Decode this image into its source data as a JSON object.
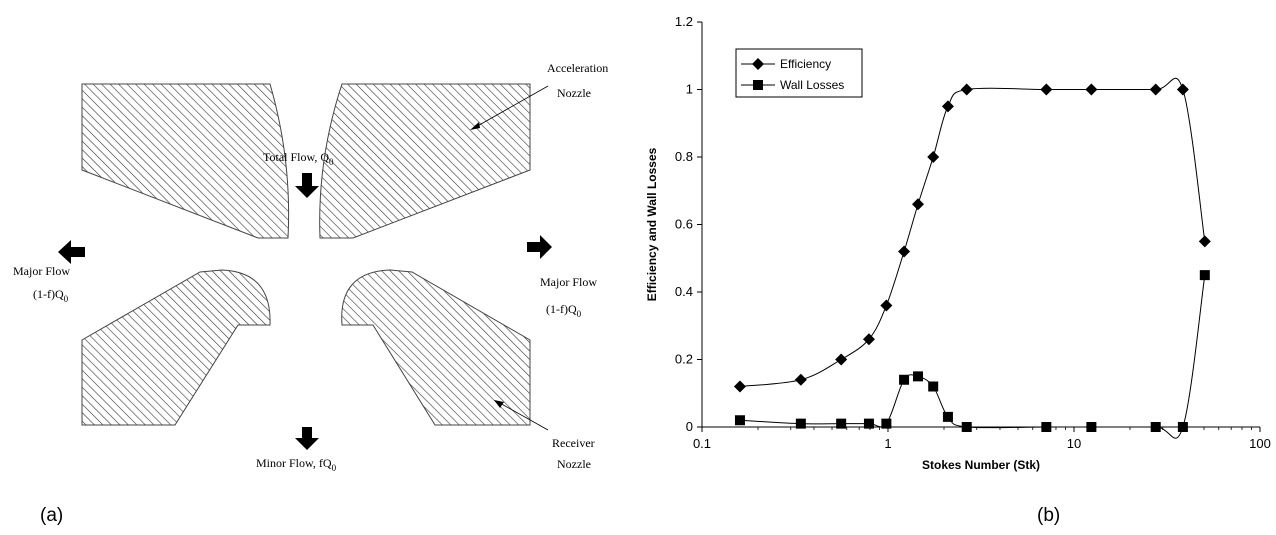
{
  "diagram": {
    "labels": {
      "total_flow": "Total Flow, Q",
      "total_flow_sub": "0",
      "acceleration": "Acceleration",
      "acceleration_nozzle": "Nozzle",
      "major_flow_left": "Major Flow",
      "major_flow_left_2": "(1-f)Q",
      "major_flow_left_2_sub": "0",
      "major_flow_right": "Major Flow",
      "major_flow_right_2": "(1-f)Q",
      "major_flow_right_2_sub": "0",
      "minor_flow": "Minor Flow, fQ",
      "minor_flow_sub": "0",
      "receiver": "Receiver",
      "receiver_nozzle": "Nozzle"
    },
    "panel_label": "(a)"
  },
  "chart_panel_label": "(b)",
  "chart_data": {
    "type": "scatter",
    "xlabel": "Stokes Number (Stk)",
    "ylabel": "Efficiency and Wall Losses",
    "xscale": "log",
    "xlim": [
      0.1,
      100
    ],
    "ylim": [
      0,
      1.2
    ],
    "x_ticks": [
      "0.1",
      "1",
      "10",
      "100"
    ],
    "y_ticks": [
      "0",
      "0.2",
      "0.4",
      "0.6",
      "0.8",
      "1",
      "1.2"
    ],
    "grid": false,
    "legend_position": "top-left",
    "series": [
      {
        "name": "Efficiency",
        "marker": "diamond",
        "x": [
          0.16,
          0.34,
          0.56,
          0.79,
          0.98,
          1.22,
          1.45,
          1.75,
          2.1,
          2.65,
          7.1,
          12.4,
          27.5,
          38.5,
          50.5
        ],
        "y": [
          0.12,
          0.14,
          0.2,
          0.26,
          0.36,
          0.52,
          0.66,
          0.8,
          0.95,
          1.0,
          1.0,
          1.0,
          1.0,
          1.0,
          0.55
        ]
      },
      {
        "name": "Wall Losses",
        "marker": "square",
        "x": [
          0.16,
          0.34,
          0.56,
          0.79,
          0.98,
          1.22,
          1.45,
          1.75,
          2.1,
          2.65,
          7.1,
          12.4,
          27.5,
          38.5,
          50.5
        ],
        "y": [
          0.02,
          0.01,
          0.01,
          0.01,
          0.01,
          0.14,
          0.15,
          0.12,
          0.03,
          0.0,
          0.0,
          0.0,
          0.0,
          0.0,
          0.45
        ]
      }
    ]
  }
}
